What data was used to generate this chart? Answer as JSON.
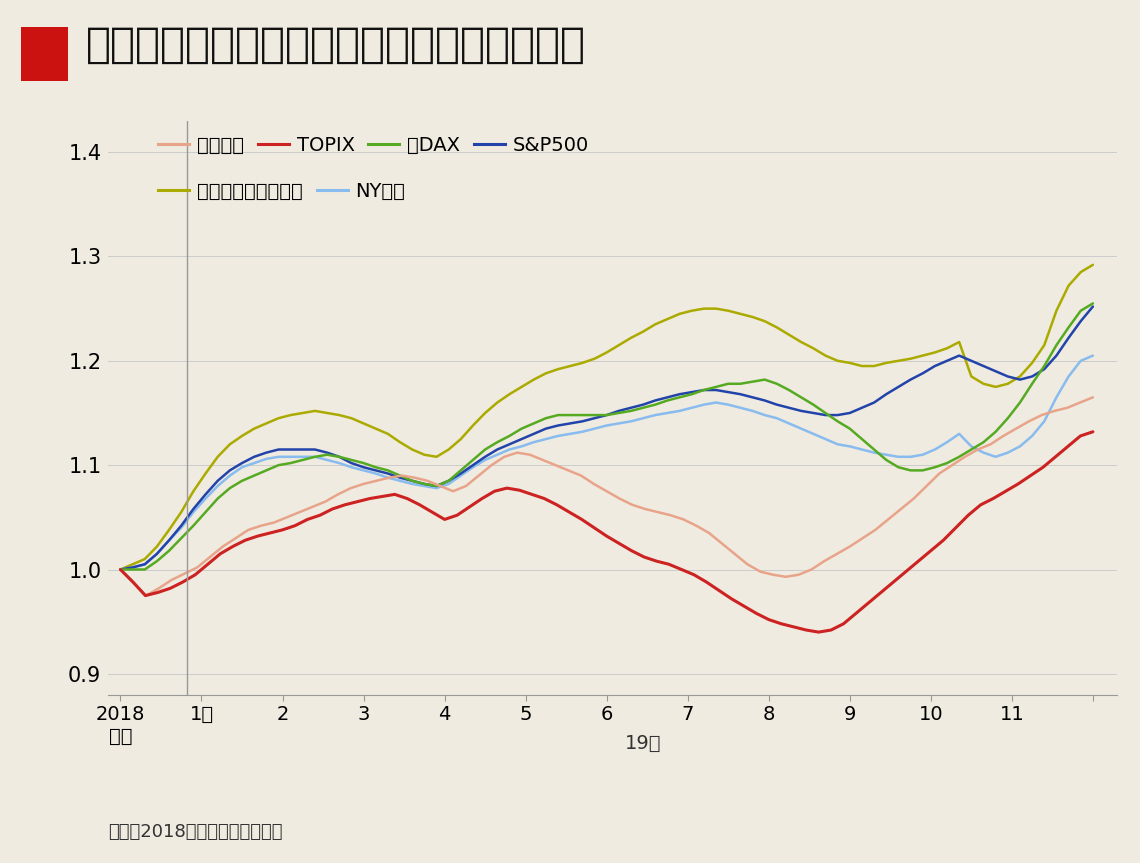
{
  "title": "出遅れ目立った日本株も秋から回復が本格化",
  "background_color": "#f0ebe0",
  "title_bg": "#ffffff",
  "note": "（注）2018年末を基準に指数化",
  "ylim": [
    0.88,
    1.43
  ],
  "yticks": [
    0.9,
    1.0,
    1.1,
    1.2,
    1.3,
    1.4
  ],
  "series": {
    "nikkei": {
      "label": "日経平均",
      "color": "#e8a48a",
      "linewidth": 1.8,
      "values": [
        1.0,
        0.988,
        0.975,
        0.982,
        0.99,
        0.996,
        1.002,
        1.012,
        1.022,
        1.03,
        1.038,
        1.042,
        1.045,
        1.05,
        1.055,
        1.06,
        1.065,
        1.072,
        1.078,
        1.082,
        1.085,
        1.088,
        1.09,
        1.088,
        1.085,
        1.08,
        1.075,
        1.08,
        1.09,
        1.1,
        1.108,
        1.112,
        1.11,
        1.105,
        1.1,
        1.095,
        1.09,
        1.082,
        1.075,
        1.068,
        1.062,
        1.058,
        1.055,
        1.052,
        1.048,
        1.042,
        1.035,
        1.025,
        1.015,
        1.005,
        0.998,
        0.995,
        0.993,
        0.995,
        1.0,
        1.008,
        1.015,
        1.022,
        1.03,
        1.038,
        1.048,
        1.058,
        1.068,
        1.08,
        1.092,
        1.1,
        1.108,
        1.115,
        1.12,
        1.128,
        1.135,
        1.142,
        1.148,
        1.152,
        1.155,
        1.16,
        1.165
      ]
    },
    "topix": {
      "label": "TOPIX",
      "color": "#cc2222",
      "linewidth": 2.2,
      "values": [
        1.0,
        0.988,
        0.975,
        0.978,
        0.982,
        0.988,
        0.995,
        1.005,
        1.015,
        1.022,
        1.028,
        1.032,
        1.035,
        1.038,
        1.042,
        1.048,
        1.052,
        1.058,
        1.062,
        1.065,
        1.068,
        1.07,
        1.072,
        1.068,
        1.062,
        1.055,
        1.048,
        1.052,
        1.06,
        1.068,
        1.075,
        1.078,
        1.076,
        1.072,
        1.068,
        1.062,
        1.055,
        1.048,
        1.04,
        1.032,
        1.025,
        1.018,
        1.012,
        1.008,
        1.005,
        1.0,
        0.995,
        0.988,
        0.98,
        0.972,
        0.965,
        0.958,
        0.952,
        0.948,
        0.945,
        0.942,
        0.94,
        0.942,
        0.948,
        0.958,
        0.968,
        0.978,
        0.988,
        0.998,
        1.008,
        1.018,
        1.028,
        1.04,
        1.052,
        1.062,
        1.068,
        1.075,
        1.082,
        1.09,
        1.098,
        1.108,
        1.118,
        1.128,
        1.132
      ]
    },
    "dax": {
      "label": "独DAX",
      "color": "#55aa22",
      "linewidth": 1.8,
      "values": [
        1.0,
        1.0,
        1.0,
        1.008,
        1.018,
        1.03,
        1.042,
        1.055,
        1.068,
        1.078,
        1.085,
        1.09,
        1.095,
        1.1,
        1.102,
        1.105,
        1.108,
        1.11,
        1.108,
        1.105,
        1.102,
        1.098,
        1.095,
        1.09,
        1.085,
        1.082,
        1.08,
        1.085,
        1.095,
        1.105,
        1.115,
        1.122,
        1.128,
        1.135,
        1.14,
        1.145,
        1.148,
        1.148,
        1.148,
        1.148,
        1.148,
        1.15,
        1.152,
        1.155,
        1.158,
        1.162,
        1.165,
        1.168,
        1.172,
        1.175,
        1.178,
        1.178,
        1.18,
        1.182,
        1.178,
        1.172,
        1.165,
        1.158,
        1.15,
        1.142,
        1.135,
        1.125,
        1.115,
        1.105,
        1.098,
        1.095,
        1.095,
        1.098,
        1.102,
        1.108,
        1.115,
        1.122,
        1.132,
        1.145,
        1.16,
        1.178,
        1.195,
        1.215,
        1.232,
        1.248,
        1.255
      ]
    },
    "sp500": {
      "label": "S&P500",
      "color": "#2244aa",
      "linewidth": 1.8,
      "values": [
        1.0,
        1.002,
        1.005,
        1.015,
        1.028,
        1.042,
        1.058,
        1.072,
        1.085,
        1.095,
        1.102,
        1.108,
        1.112,
        1.115,
        1.115,
        1.115,
        1.115,
        1.112,
        1.108,
        1.102,
        1.098,
        1.095,
        1.092,
        1.088,
        1.085,
        1.082,
        1.08,
        1.085,
        1.092,
        1.1,
        1.108,
        1.115,
        1.12,
        1.125,
        1.13,
        1.135,
        1.138,
        1.14,
        1.142,
        1.145,
        1.148,
        1.152,
        1.155,
        1.158,
        1.162,
        1.165,
        1.168,
        1.17,
        1.172,
        1.172,
        1.17,
        1.168,
        1.165,
        1.162,
        1.158,
        1.155,
        1.152,
        1.15,
        1.148,
        1.148,
        1.15,
        1.155,
        1.16,
        1.168,
        1.175,
        1.182,
        1.188,
        1.195,
        1.2,
        1.205,
        1.2,
        1.195,
        1.19,
        1.185,
        1.182,
        1.185,
        1.192,
        1.205,
        1.222,
        1.238,
        1.252
      ]
    },
    "nasdaq": {
      "label": "ナスダック総合指数",
      "color": "#aaaa00",
      "linewidth": 1.8,
      "values": [
        1.0,
        1.005,
        1.01,
        1.022,
        1.038,
        1.055,
        1.075,
        1.092,
        1.108,
        1.12,
        1.128,
        1.135,
        1.14,
        1.145,
        1.148,
        1.15,
        1.152,
        1.15,
        1.148,
        1.145,
        1.14,
        1.135,
        1.13,
        1.122,
        1.115,
        1.11,
        1.108,
        1.115,
        1.125,
        1.138,
        1.15,
        1.16,
        1.168,
        1.175,
        1.182,
        1.188,
        1.192,
        1.195,
        1.198,
        1.202,
        1.208,
        1.215,
        1.222,
        1.228,
        1.235,
        1.24,
        1.245,
        1.248,
        1.25,
        1.25,
        1.248,
        1.245,
        1.242,
        1.238,
        1.232,
        1.225,
        1.218,
        1.212,
        1.205,
        1.2,
        1.198,
        1.195,
        1.195,
        1.198,
        1.2,
        1.202,
        1.205,
        1.208,
        1.212,
        1.218,
        1.185,
        1.178,
        1.175,
        1.178,
        1.185,
        1.198,
        1.215,
        1.248,
        1.272,
        1.285,
        1.292
      ]
    },
    "nydow": {
      "label": "NYダウ",
      "color": "#88bbee",
      "linewidth": 1.8,
      "values": [
        1.0,
        1.002,
        1.005,
        1.015,
        1.028,
        1.04,
        1.055,
        1.068,
        1.08,
        1.09,
        1.098,
        1.102,
        1.106,
        1.108,
        1.108,
        1.108,
        1.108,
        1.105,
        1.102,
        1.098,
        1.095,
        1.092,
        1.088,
        1.085,
        1.082,
        1.08,
        1.078,
        1.082,
        1.09,
        1.098,
        1.105,
        1.11,
        1.115,
        1.118,
        1.122,
        1.125,
        1.128,
        1.13,
        1.132,
        1.135,
        1.138,
        1.14,
        1.142,
        1.145,
        1.148,
        1.15,
        1.152,
        1.155,
        1.158,
        1.16,
        1.158,
        1.155,
        1.152,
        1.148,
        1.145,
        1.14,
        1.135,
        1.13,
        1.125,
        1.12,
        1.118,
        1.115,
        1.112,
        1.11,
        1.108,
        1.108,
        1.11,
        1.115,
        1.122,
        1.13,
        1.118,
        1.112,
        1.108,
        1.112,
        1.118,
        1.128,
        1.142,
        1.165,
        1.185,
        1.2,
        1.205
      ]
    }
  },
  "grid_color": "#cccccc",
  "vertical_line_color": "#999999"
}
